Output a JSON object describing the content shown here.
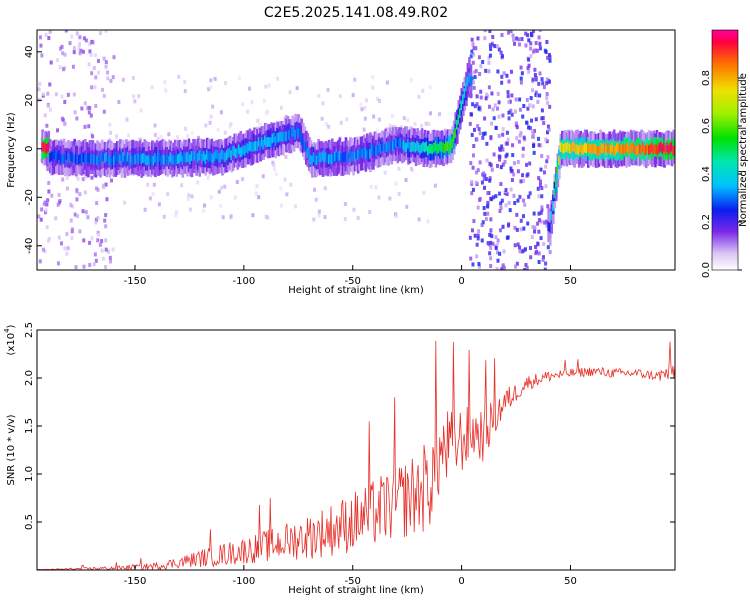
{
  "title": "C2E5.2025.141.08.49.R02",
  "chart_data": [
    {
      "type": "heatmap",
      "name": "spectrogram",
      "xlabel": "Height of straight line (km)",
      "ylabel": "Frequency (Hz)",
      "xlim": [
        -195,
        98
      ],
      "ylim": [
        -50,
        49
      ],
      "xticks": [
        -150,
        -100,
        -50,
        0,
        50
      ],
      "yticks": [
        -40,
        -20,
        0,
        20,
        40
      ],
      "colorbar": {
        "label": "Normalized spectral amplitude",
        "range": [
          0,
          1
        ],
        "ticks": [
          "0.0",
          "0.2",
          "0.4",
          "0.6",
          "0.8"
        ],
        "tick_values": [
          0,
          0.2,
          0.4,
          0.6,
          0.8
        ]
      },
      "ridge": [
        {
          "x": -190,
          "freq": -3,
          "amp": 0.25
        },
        {
          "x": -170,
          "freq": -4,
          "amp": 0.3
        },
        {
          "x": -150,
          "freq": -4,
          "amp": 0.32
        },
        {
          "x": -130,
          "freq": -4,
          "amp": 0.33
        },
        {
          "x": -110,
          "freq": -3,
          "amp": 0.35
        },
        {
          "x": -90,
          "freq": 3,
          "amp": 0.35
        },
        {
          "x": -75,
          "freq": 7,
          "amp": 0.3
        },
        {
          "x": -70,
          "freq": -4,
          "amp": 0.32
        },
        {
          "x": -50,
          "freq": -3,
          "amp": 0.3
        },
        {
          "x": -30,
          "freq": 2,
          "amp": 0.3
        },
        {
          "x": -15,
          "freq": 0,
          "amp": 0.45
        },
        {
          "x": -5,
          "freq": 1,
          "amp": 0.6
        },
        {
          "x": 3,
          "freq": 30,
          "amp": 0.3
        },
        {
          "x": 20,
          "freq": 0,
          "amp": 0.1
        },
        {
          "x": 40,
          "freq": -33,
          "amp": 0.25
        },
        {
          "x": 45,
          "freq": 0,
          "amp": 0.75
        },
        {
          "x": 60,
          "freq": 0,
          "amp": 0.8
        },
        {
          "x": 80,
          "freq": 0,
          "amp": 0.85
        },
        {
          "x": 95,
          "freq": 0,
          "amp": 0.95
        }
      ]
    },
    {
      "type": "line",
      "name": "snr",
      "xlabel": "Height of straight line (km)",
      "ylabel": "SNR (10 * v/v)",
      "scale_note": "(x10",
      "scale_exponent": "4",
      "scale_suffix": ")",
      "xlim": [
        -195,
        98
      ],
      "ylim": [
        0,
        2.5
      ],
      "xticks": [
        -150,
        -100,
        -50,
        0,
        50
      ],
      "yticks": [
        0.5,
        1.0,
        1.5,
        2.0,
        2.5
      ],
      "ytick_labels": [
        "0.5",
        "1.0",
        "1.5",
        "2.0",
        "2.5"
      ],
      "series": [
        {
          "name": "SNR",
          "color": "#e8302a",
          "x": [
            -195,
            -180,
            -160,
            -140,
            -130,
            -120,
            -110,
            -100,
            -90,
            -80,
            -70,
            -60,
            -50,
            -45,
            -40,
            -35,
            -30,
            -25,
            -20,
            -15,
            -10,
            -5,
            0,
            5,
            10,
            15,
            20,
            25,
            30,
            40,
            50,
            60,
            70,
            80,
            90,
            95,
            98
          ],
          "mean": [
            0.0,
            0.01,
            0.02,
            0.04,
            0.08,
            0.12,
            0.16,
            0.2,
            0.25,
            0.3,
            0.35,
            0.42,
            0.5,
            0.55,
            0.6,
            0.65,
            0.7,
            0.75,
            0.8,
            0.9,
            1.2,
            1.3,
            1.35,
            1.45,
            1.4,
            1.6,
            1.75,
            1.85,
            1.95,
            2.02,
            2.05,
            2.07,
            2.05,
            2.05,
            2.02,
            2.05,
            2.08
          ],
          "noise": [
            0.005,
            0.01,
            0.02,
            0.04,
            0.06,
            0.09,
            0.12,
            0.14,
            0.17,
            0.2,
            0.24,
            0.28,
            0.32,
            0.34,
            0.36,
            0.38,
            0.4,
            0.42,
            0.45,
            0.5,
            0.45,
            0.4,
            0.35,
            0.3,
            0.28,
            0.22,
            0.15,
            0.1,
            0.08,
            0.06,
            0.05,
            0.05,
            0.05,
            0.05,
            0.05,
            0.12,
            0.1
          ]
        }
      ]
    }
  ]
}
